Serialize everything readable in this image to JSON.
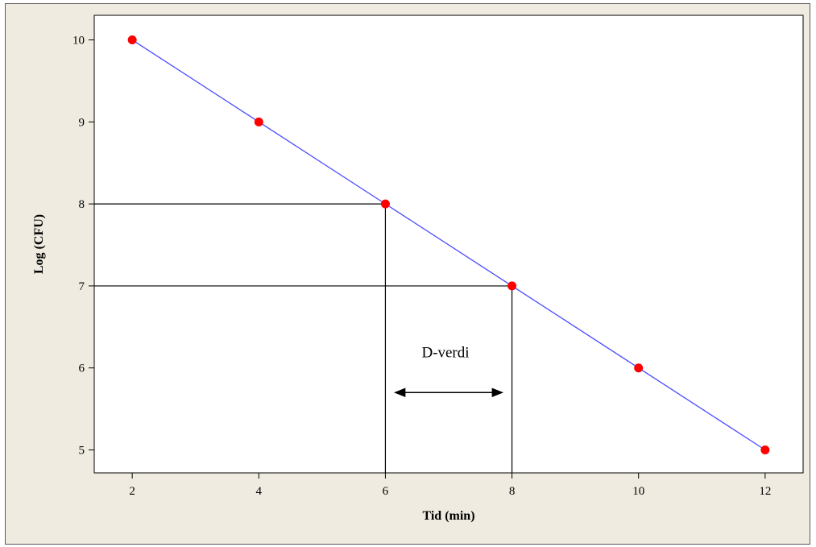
{
  "chart_data": {
    "type": "line",
    "title": "",
    "xlabel": "Tid (min)",
    "ylabel": "Log (CFU)",
    "x": [
      2,
      4,
      6,
      8,
      10,
      12
    ],
    "series": [
      {
        "values": [
          10,
          9,
          8,
          7,
          6,
          5
        ]
      }
    ],
    "xlim": [
      1.4,
      12.6
    ],
    "ylim": [
      4.72,
      10.3
    ],
    "xticks": [
      "2",
      "4",
      "6",
      "8",
      "10",
      "12"
    ],
    "yticks": [
      "5",
      "6",
      "7",
      "8",
      "9",
      "10"
    ],
    "grid": false,
    "line_color": "#4b4bff",
    "marker_color": "#ff0000",
    "reference_lines": [
      {
        "x": 6,
        "y": 8
      },
      {
        "x": 8,
        "y": 7
      }
    ],
    "annotation": {
      "text": "D-verdi",
      "arrow_from_x": 6,
      "arrow_to_x": 8
    }
  }
}
